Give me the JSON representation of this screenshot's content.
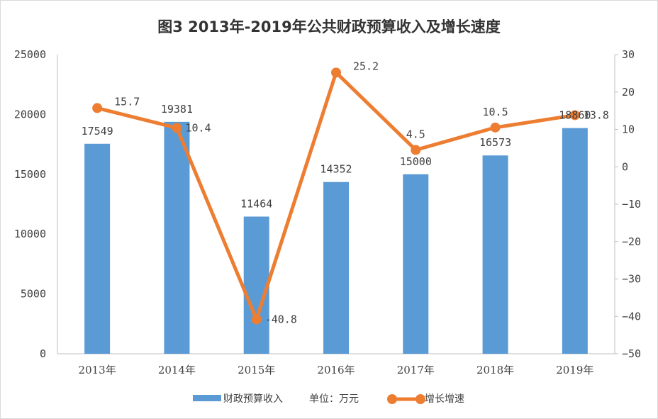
{
  "chart_data": {
    "type": "bar+line",
    "title": "图3  2013年-2019年公共财政预算收入及增长速度",
    "categories": [
      "2013年",
      "2014年",
      "2015年",
      "2016年",
      "2017年",
      "2018年",
      "2019年"
    ],
    "series": [
      {
        "name": "财政预算收入",
        "type": "bar",
        "axis": "left",
        "values": [
          17549,
          19381,
          11464,
          14352,
          15000,
          16573,
          18860
        ],
        "color": "#5b9bd5"
      },
      {
        "name": "增长增速",
        "type": "line",
        "axis": "right",
        "values": [
          15.7,
          10.4,
          -40.8,
          25.2,
          4.5,
          10.5,
          13.8
        ],
        "color": "#ed7d31"
      }
    ],
    "unit_note": "单位：万元",
    "y_left": {
      "range": [
        0,
        25000
      ],
      "ticks": [
        0,
        5000,
        10000,
        15000,
        20000,
        25000
      ]
    },
    "y_right": {
      "range": [
        -50,
        30
      ],
      "ticks": [
        -50,
        -40,
        -30,
        -20,
        -10,
        0,
        10,
        20,
        30
      ]
    },
    "grid": false,
    "legend_position": "bottom"
  }
}
